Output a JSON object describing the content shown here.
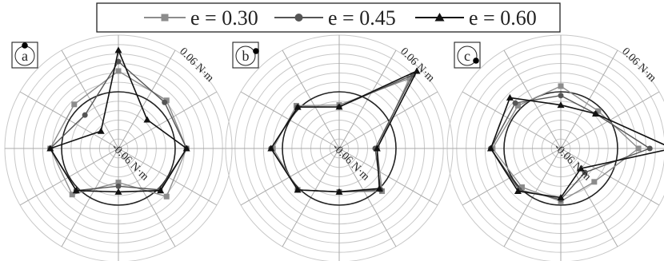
{
  "colors": {
    "e030": "#8c8c8c",
    "e045": "#555555",
    "e060": "#111111",
    "grid": "#c8c8c8",
    "axis": "#aaaaaa",
    "ring": "#222222"
  },
  "legend": [
    {
      "label": "e = 0.30",
      "marker": "square",
      "color": "#8c8c8c"
    },
    {
      "label": "e = 0.45",
      "marker": "circle",
      "color": "#555555"
    },
    {
      "label": "e = 0.60",
      "marker": "triangle",
      "color": "#111111"
    }
  ],
  "chart_data": [
    {
      "type": "radar",
      "panel_label": "a",
      "outer_label": "0.06 N·m",
      "inner_label": "-0.06 N·m",
      "rlim": [
        -0.06,
        0.06
      ],
      "reference_value": 0.0,
      "angles_deg": [
        0,
        45,
        90,
        135,
        180,
        225,
        270,
        315
      ],
      "series": [
        {
          "name": "e = 0.30",
          "values": [
            0.022,
            0.012,
            0.012,
            0.012,
            -0.024,
            0.009,
            0.012,
            0.006
          ]
        },
        {
          "name": "e = 0.45",
          "values": [
            0.032,
            0.009,
            0.012,
            0.002,
            -0.02,
            0.003,
            0.012,
            -0.01
          ]
        },
        {
          "name": "e = 0.60",
          "values": [
            0.044,
            -0.017,
            0.012,
            0.003,
            -0.014,
            0.003,
            0.012,
            -0.034
          ]
        }
      ]
    },
    {
      "type": "radar",
      "panel_label": "b",
      "outer_label": "0.06 N·m",
      "inner_label": "-0.06 N·m",
      "rlim": [
        -0.06,
        0.06
      ],
      "reference_value": 0.0,
      "angles_deg": [
        0,
        45,
        90,
        135,
        180,
        225,
        270,
        315
      ],
      "series": [
        {
          "name": "e = 0.30",
          "values": [
            -0.014,
            0.045,
            -0.02,
            0.004,
            -0.014,
            0.002,
            0.01,
            0.004
          ]
        },
        {
          "name": "e = 0.45",
          "values": [
            -0.016,
            0.05,
            -0.022,
            0.002,
            -0.014,
            0.002,
            0.012,
            0.002
          ]
        },
        {
          "name": "e = 0.60",
          "values": [
            -0.016,
            0.056,
            -0.02,
            0.0,
            -0.014,
            0.002,
            0.012,
            0.002
          ]
        }
      ]
    },
    {
      "type": "radar",
      "panel_label": "c",
      "outer_label": "0.06 N·m",
      "inner_label": "-0.06 N·m",
      "rlim": [
        -0.06,
        0.06
      ],
      "reference_value": 0.0,
      "angles_deg": [
        0,
        45,
        90,
        135,
        180,
        225,
        270,
        315
      ],
      "series": [
        {
          "name": "e = 0.30",
          "values": [
            0.006,
            -0.004,
            0.022,
            -0.01,
            -0.004,
            -0.002,
            0.012,
            0.004
          ]
        },
        {
          "name": "e = 0.45",
          "values": [
            -0.004,
            -0.008,
            0.034,
            -0.024,
            -0.006,
            0.002,
            0.014,
            0.008
          ]
        },
        {
          "name": "e = 0.60",
          "values": [
            -0.014,
            -0.008,
            0.058,
            -0.03,
            -0.008,
            0.004,
            0.014,
            0.016
          ]
        }
      ]
    }
  ]
}
